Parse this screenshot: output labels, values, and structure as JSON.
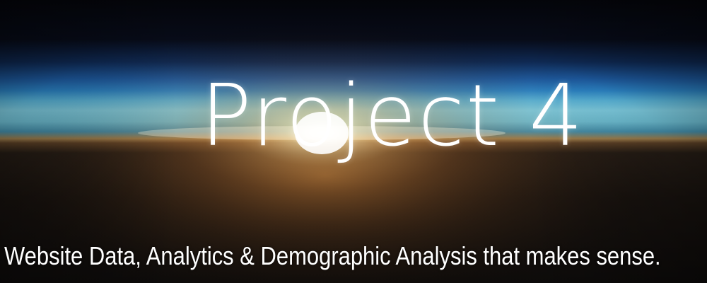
{
  "banner": {
    "title": "Project 4",
    "tagline": "Website Data, Analytics & Demographic Analysis that makes sense."
  },
  "colors": {
    "space": "#050608",
    "atmosphere_blue": "#2f8fd6",
    "horizon_cyan": "#7fe4ff",
    "sunrise_orange": "#d98a2a",
    "earth_dark": "#1a1410",
    "text": "#ffffff"
  }
}
